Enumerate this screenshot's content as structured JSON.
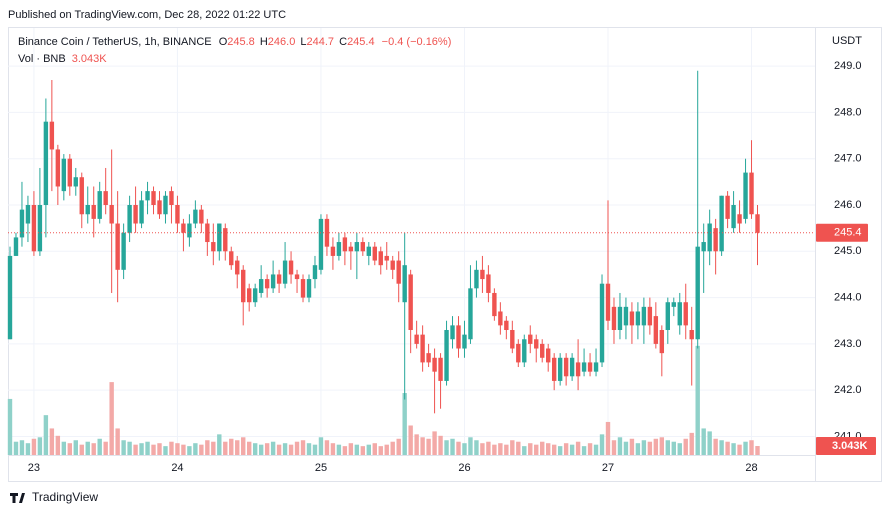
{
  "published": "Published on TradingView.com, Dec 28, 2022 01:22 UTC",
  "brand": "TradingView",
  "chart_data": {
    "type": "candlestick",
    "legend": {
      "symbol": "Binance Coin / TetherUS, 1h, BINANCE",
      "fields": [
        {
          "key": "O",
          "value": "245.8"
        },
        {
          "key": "H",
          "value": "246.0"
        },
        {
          "key": "L",
          "value": "244.7"
        },
        {
          "key": "C",
          "value": "245.4"
        }
      ],
      "change": "−0.4 (−0.16%)"
    },
    "volume_legend": {
      "name": "Vol · BNB",
      "value": "3.043K"
    },
    "y_axis_label": "USDT",
    "categories": [
      null,
      null,
      null,
      null,
      "23",
      null,
      null,
      null,
      null,
      null,
      null,
      null,
      null,
      null,
      null,
      null,
      null,
      null,
      null,
      null,
      null,
      null,
      null,
      null,
      null,
      null,
      null,
      null,
      "24",
      null,
      null,
      null,
      null,
      null,
      null,
      null,
      null,
      null,
      null,
      null,
      null,
      null,
      null,
      null,
      null,
      null,
      null,
      null,
      null,
      null,
      null,
      null,
      "25",
      null,
      null,
      null,
      null,
      null,
      null,
      null,
      null,
      null,
      null,
      null,
      null,
      null,
      null,
      null,
      null,
      null,
      null,
      null,
      null,
      null,
      null,
      null,
      "26",
      null,
      null,
      null,
      null,
      null,
      null,
      null,
      null,
      null,
      null,
      null,
      null,
      null,
      null,
      null,
      null,
      null,
      null,
      null,
      null,
      null,
      null,
      null,
      "27",
      null,
      null,
      null,
      null,
      null,
      null,
      null,
      null,
      null,
      null,
      null,
      null,
      null,
      null,
      null,
      null,
      null,
      null,
      null,
      null,
      null,
      null,
      null,
      "28",
      null
    ],
    "open": [
      243.1,
      244.9,
      245.3,
      245.6,
      246.0,
      245.0,
      246.0,
      247.8,
      247.2,
      246.3,
      247.0,
      246.4,
      246.6,
      245.8,
      246.0,
      245.7,
      246.3,
      246.0,
      245.6,
      244.6,
      245.4,
      246.0,
      245.6,
      246.1,
      246.3,
      246.1,
      245.8,
      246.3,
      246.0,
      245.6,
      245.3,
      245.6,
      245.9,
      245.6,
      245.2,
      245.0,
      245.5,
      245.0,
      244.8,
      244.6,
      244.2,
      243.9,
      244.1,
      244.4,
      244.2,
      244.5,
      244.3,
      244.8,
      244.5,
      244.4,
      244.0,
      244.4,
      244.6,
      245.7,
      245.1,
      244.9,
      245.3,
      245.1,
      245.0,
      245.2,
      244.9,
      245.1,
      245.0,
      244.9,
      244.8,
      244.8,
      243.9,
      244.5,
      243.2,
      243.2,
      242.8,
      242.7,
      242.7,
      242.2,
      243.1,
      243.4,
      242.9,
      243.1,
      244.2,
      244.6,
      244.5,
      244.1,
      243.7,
      243.5,
      243.3,
      243.0,
      242.6,
      243.2,
      243.1,
      243.0,
      242.9,
      242.7,
      242.2,
      242.7,
      242.3,
      242.6,
      242.4,
      242.6,
      242.4,
      242.6,
      244.3,
      243.8,
      243.3,
      243.4,
      243.7,
      243.4,
      243.4,
      243.8,
      243.6,
      243.3,
      243.3,
      243.8,
      243.4,
      243.9,
      243.3,
      243.1,
      245.0,
      245.0,
      245.5,
      245.0,
      246.2,
      245.5,
      245.8,
      245.7,
      246.7,
      245.8
    ],
    "high": [
      245.1,
      245.4,
      246.5,
      246.2,
      246.3,
      246.8,
      248.3,
      248.7,
      247.3,
      247.1,
      247.1,
      246.8,
      246.7,
      246.4,
      246.4,
      246.5,
      246.8,
      247.2,
      246.3,
      245.6,
      246.2,
      246.4,
      246.3,
      246.5,
      246.4,
      246.3,
      246.3,
      246.4,
      246.2,
      245.7,
      245.8,
      246.1,
      246.0,
      245.7,
      245.6,
      245.6,
      245.6,
      245.1,
      244.9,
      244.7,
      244.3,
      244.3,
      244.7,
      244.5,
      244.8,
      244.6,
      245.2,
      245.0,
      244.6,
      244.5,
      244.5,
      244.9,
      245.8,
      245.8,
      245.3,
      245.4,
      245.4,
      245.2,
      245.4,
      245.3,
      245.2,
      245.2,
      245.1,
      245.2,
      244.9,
      245.0,
      245.4,
      244.6,
      243.5,
      243.4,
      243.0,
      242.9,
      242.8,
      243.5,
      243.6,
      243.6,
      243.5,
      244.7,
      244.8,
      244.9,
      244.7,
      244.2,
      243.9,
      243.6,
      243.5,
      243.1,
      243.2,
      243.4,
      243.2,
      243.1,
      243.0,
      242.8,
      242.8,
      242.8,
      242.8,
      243.1,
      242.9,
      242.8,
      242.9,
      244.5,
      246.1,
      244.0,
      244.1,
      244.0,
      243.9,
      243.9,
      244.0,
      244.0,
      243.9,
      243.4,
      244.0,
      244.0,
      244.1,
      244.3,
      243.8,
      248.9,
      245.6,
      245.9,
      245.7,
      246.2,
      246.3,
      246.3,
      246.1,
      247.0,
      247.4,
      246.0
    ],
    "low": [
      243.1,
      244.9,
      245.1,
      245.2,
      244.9,
      244.9,
      245.3,
      246.3,
      246.0,
      246.1,
      246.2,
      246.2,
      245.5,
      245.6,
      245.3,
      245.6,
      245.8,
      244.1,
      243.9,
      244.4,
      245.2,
      245.4,
      245.5,
      245.8,
      245.8,
      245.7,
      245.6,
      245.6,
      245.4,
      245.0,
      245.1,
      245.5,
      245.4,
      244.9,
      244.7,
      244.8,
      244.8,
      244.6,
      244.2,
      243.4,
      243.7,
      243.8,
      244.0,
      244.0,
      244.1,
      244.1,
      244.2,
      244.3,
      244.1,
      243.9,
      243.9,
      244.2,
      244.5,
      244.9,
      244.6,
      244.8,
      244.7,
      244.6,
      244.4,
      244.9,
      244.7,
      244.7,
      244.5,
      244.6,
      244.4,
      243.9,
      241.8,
      242.8,
      242.9,
      242.4,
      242.5,
      241.5,
      241.6,
      242.1,
      242.9,
      242.7,
      242.7,
      243.0,
      244.0,
      244.1,
      243.9,
      243.5,
      243.2,
      243.1,
      242.8,
      242.5,
      242.5,
      242.8,
      242.6,
      242.6,
      242.4,
      242.0,
      242.1,
      242.1,
      242.2,
      242.0,
      242.3,
      242.3,
      242.3,
      242.5,
      243.3,
      243.0,
      243.1,
      243.1,
      243.0,
      243.1,
      243.0,
      243.2,
      242.9,
      242.3,
      243.0,
      243.6,
      243.2,
      243.1,
      242.1,
      242.9,
      244.1,
      244.7,
      244.5,
      244.9,
      245.5,
      245.4,
      245.4,
      245.6,
      245.7,
      244.7
    ],
    "close": [
      244.9,
      245.3,
      245.9,
      246.0,
      245.0,
      246.0,
      247.8,
      247.2,
      246.4,
      247.0,
      246.4,
      246.6,
      245.8,
      246.0,
      245.7,
      246.3,
      246.0,
      245.6,
      244.6,
      245.4,
      246.0,
      245.6,
      246.1,
      246.3,
      246.0,
      245.8,
      246.2,
      246.0,
      245.6,
      245.4,
      245.6,
      245.9,
      245.6,
      245.2,
      245.0,
      245.6,
      245.0,
      244.7,
      244.5,
      243.9,
      243.9,
      244.2,
      244.4,
      244.2,
      244.5,
      244.3,
      244.8,
      244.5,
      244.4,
      244.0,
      244.4,
      244.7,
      245.7,
      245.1,
      244.9,
      245.2,
      245.0,
      245.0,
      245.2,
      245.0,
      245.1,
      244.8,
      244.7,
      244.8,
      244.6,
      244.3,
      244.7,
      243.3,
      243.0,
      242.6,
      242.6,
      242.4,
      242.2,
      243.3,
      243.4,
      242.9,
      243.2,
      244.2,
      244.6,
      244.4,
      244.1,
      243.6,
      243.4,
      243.3,
      242.9,
      242.6,
      243.1,
      243.0,
      242.9,
      242.7,
      242.6,
      242.2,
      242.7,
      242.3,
      242.7,
      242.3,
      242.6,
      242.4,
      242.6,
      244.3,
      243.5,
      243.3,
      243.8,
      243.8,
      243.4,
      243.7,
      243.8,
      243.4,
      243.0,
      242.8,
      243.9,
      243.9,
      243.9,
      243.4,
      243.1,
      245.1,
      245.2,
      245.6,
      245.0,
      246.2,
      245.7,
      246.0,
      245.6,
      246.7,
      245.8,
      245.4
    ],
    "volume": [
      19000,
      4500,
      5000,
      4000,
      5500,
      6000,
      13500,
      9000,
      6500,
      4500,
      4000,
      5000,
      3500,
      4500,
      4000,
      5500,
      4500,
      24700,
      9000,
      5000,
      4500,
      3500,
      4000,
      4500,
      3500,
      4000,
      3000,
      4500,
      4000,
      3500,
      3000,
      4000,
      3500,
      5000,
      4500,
      7000,
      4500,
      5500,
      5000,
      6000,
      4500,
      4000,
      3500,
      4000,
      4500,
      3500,
      4000,
      3500,
      4500,
      5000,
      4000,
      3500,
      6000,
      5000,
      4000,
      3500,
      3000,
      4000,
      3500,
      3000,
      3500,
      4000,
      3000,
      3500,
      4500,
      5500,
      21000,
      10000,
      7000,
      6000,
      5500,
      8000,
      6500,
      5000,
      5500,
      4500,
      4000,
      6000,
      5000,
      4000,
      4500,
      3500,
      4000,
      3500,
      5000,
      4500,
      3000,
      4000,
      3500,
      4500,
      4000,
      3500,
      3000,
      4000,
      3500,
      4500,
      3000,
      4000,
      3500,
      7000,
      11200,
      5000,
      6000,
      4500,
      5500,
      4000,
      5000,
      4500,
      5500,
      6000,
      5000,
      4500,
      4000,
      5500,
      7500,
      37000,
      9000,
      8000,
      5500,
      5000,
      4500,
      4000,
      3500,
      4500,
      5000,
      3043
    ],
    "last_volume_label": "3.043K",
    "ylim": [
      240.6,
      249.78
    ],
    "yticks": [
      {
        "value": 241,
        "label": "241.0"
      },
      {
        "value": 242,
        "label": "242.0"
      },
      {
        "value": 243,
        "label": "243.0"
      },
      {
        "value": 244,
        "label": "244.0"
      },
      {
        "value": 245,
        "label": "245.0"
      },
      {
        "value": 246,
        "label": "246.0"
      },
      {
        "value": 247,
        "label": "247.0"
      },
      {
        "value": 248,
        "label": "248.0"
      },
      {
        "value": 249,
        "label": "249.0"
      }
    ],
    "y2lim": [
      0,
      144000
    ],
    "grid": true,
    "up_color": "#26a69a",
    "down_color": "#ef5350",
    "up_volume_color": "#8fd1c9",
    "down_volume_color": "#f3a9a7"
  }
}
